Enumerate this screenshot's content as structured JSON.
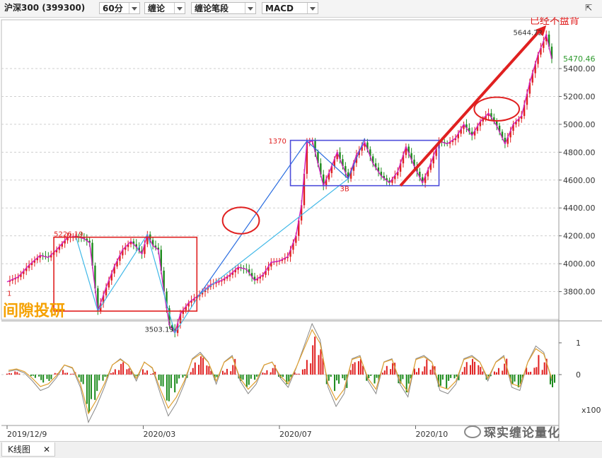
{
  "toolbar": {
    "title": "沪深300 (399300)",
    "period": "60分",
    "mode": "缠论",
    "sub_mode": "缠论笔段",
    "indicator": "MACD",
    "close_icon": "expand-icon"
  },
  "tab": {
    "label": "K线图",
    "close": "✕"
  },
  "watermark": "琛实缠论量化",
  "overlay_text": "间隙投研",
  "chart_data": {
    "type": "line",
    "price_axis": {
      "ylim": [
        3600,
        5750
      ],
      "ticks": [
        "5400.00",
        "5200.00",
        "5000.00",
        "4800.00",
        "4600.00",
        "4400.00",
        "4200.00",
        "4000.00",
        "3800.00"
      ]
    },
    "current_price": "5470.46",
    "x_ticks": [
      "2019/12/9",
      "2020/03",
      "2020/07",
      "2020/10"
    ],
    "price_series": [
      [
        0,
        3870
      ],
      [
        4,
        3905
      ],
      [
        8,
        3990
      ],
      [
        12,
        4060
      ],
      [
        15,
        4045
      ],
      [
        18,
        4100
      ],
      [
        22,
        4190
      ],
      [
        25,
        4195
      ],
      [
        28,
        4180
      ],
      [
        30,
        4150
      ],
      [
        33,
        3660
      ],
      [
        36,
        3830
      ],
      [
        39,
        3980
      ],
      [
        42,
        4100
      ],
      [
        45,
        4160
      ],
      [
        47,
        4120
      ],
      [
        49,
        4070
      ],
      [
        51,
        4210
      ],
      [
        53,
        4130
      ],
      [
        55,
        4100
      ],
      [
        57,
        3800
      ],
      [
        59,
        3560
      ],
      [
        61,
        3503
      ],
      [
        63,
        3640
      ],
      [
        66,
        3720
      ],
      [
        70,
        3780
      ],
      [
        74,
        3850
      ],
      [
        78,
        3880
      ],
      [
        81,
        3920
      ],
      [
        84,
        3975
      ],
      [
        87,
        3960
      ],
      [
        90,
        3880
      ],
      [
        93,
        3920
      ],
      [
        96,
        4010
      ],
      [
        99,
        4020
      ],
      [
        102,
        4050
      ],
      [
        105,
        4200
      ],
      [
        107,
        4420
      ],
      [
        109,
        4870
      ],
      [
        111,
        4880
      ],
      [
        113,
        4720
      ],
      [
        115,
        4560
      ],
      [
        117,
        4650
      ],
      [
        120,
        4800
      ],
      [
        122,
        4700
      ],
      [
        124,
        4610
      ],
      [
        127,
        4780
      ],
      [
        130,
        4870
      ],
      [
        133,
        4720
      ],
      [
        136,
        4630
      ],
      [
        139,
        4580
      ],
      [
        142,
        4660
      ],
      [
        145,
        4840
      ],
      [
        148,
        4700
      ],
      [
        151,
        4580
      ],
      [
        154,
        4720
      ],
      [
        157,
        4880
      ],
      [
        160,
        4860
      ],
      [
        163,
        4900
      ],
      [
        166,
        5000
      ],
      [
        169,
        4920
      ],
      [
        172,
        5020
      ],
      [
        175,
        5080
      ],
      [
        178,
        4990
      ],
      [
        181,
        4860
      ],
      [
        184,
        5000
      ],
      [
        187,
        5060
      ],
      [
        190,
        5300
      ],
      [
        193,
        5500
      ],
      [
        196,
        5644
      ],
      [
        198,
        5470
      ]
    ],
    "labels": [
      {
        "text": "已经不盘背",
        "x": 190,
        "y": 5720,
        "color": "#e02020"
      },
      {
        "text": "5644.72",
        "x": 184,
        "y": 5640,
        "color": "#333333"
      },
      {
        "text": "1370",
        "x": 95,
        "y": 4862,
        "color": "#e02020"
      },
      {
        "text": "3B",
        "x": 121,
        "y": 4520,
        "color": "#e02020"
      },
      {
        "text": "3503.19",
        "x": 50,
        "y": 3510,
        "color": "#333333"
      },
      {
        "text": "5226.19",
        "x": 17,
        "y": 4195,
        "color": "#e02020"
      },
      {
        "text": "1",
        "x": 0,
        "y": 3770,
        "color": "#e02020"
      }
    ],
    "bi_lines": [
      [
        [
          25,
          4195
        ],
        [
          33,
          3660
        ],
        [
          51,
          4210
        ],
        [
          61,
          3503
        ],
        [
          70,
          3780
        ]
      ],
      [
        [
          70,
          3780
        ],
        [
          109,
          4880
        ],
        [
          124,
          4610
        ],
        [
          130,
          4900
        ]
      ]
    ],
    "zhongshu": [
      {
        "x0": 17,
        "x1": 69,
        "y0": 3660,
        "y1": 4190,
        "color": "#e02020"
      },
      {
        "x0": 103,
        "x1": 157,
        "y0": 4560,
        "y1": 4885,
        "color": "#4d4ddb"
      }
    ],
    "highlights": [
      {
        "cx": 85,
        "cy": 4310,
        "rx": 6.5,
        "ry": 95,
        "color": "#e02020"
      },
      {
        "cx": 178,
        "cy": 5110,
        "rx": 8,
        "ry": 85,
        "color": "#e02020"
      }
    ],
    "big_arrow": {
      "from": [
        143,
        4560
      ],
      "to": [
        196,
        5710
      ],
      "color": "#e02020"
    },
    "macd": {
      "ylim": [
        -1.6,
        1.6
      ],
      "ticks": [
        "1",
        "0"
      ],
      "scale_label": "x100",
      "hist": [
        0.05,
        0.1,
        0,
        -0.15,
        -0.25,
        -0.2,
        0.05,
        0.2,
        0.1,
        -0.3,
        -1.2,
        -0.8,
        -0.3,
        0.2,
        0.4,
        0.2,
        -0.1,
        0.3,
        0.1,
        -0.4,
        -0.9,
        -0.6,
        -0.2,
        0.4,
        0.6,
        0.3,
        -0.2,
        0.3,
        0.5,
        -0.2,
        -0.4,
        -0.2,
        0.2,
        0.3,
        -0.1,
        -0.3,
        0.1,
        0.6,
        1.2,
        0.8,
        -0.3,
        -0.8,
        -0.5,
        0.4,
        0.5,
        -0.2,
        -0.5,
        0.3,
        0.4,
        -0.3,
        -0.6,
        0.4,
        0.5,
        0.3,
        -0.4,
        -0.5,
        -0.3,
        0.4,
        0.5,
        0.3,
        -0.2,
        0.3,
        0.5,
        -0.3,
        -0.4,
        0.3,
        0.8,
        0.5,
        -0.4
      ],
      "dif": [
        0.1,
        0.15,
        0.05,
        -0.2,
        -0.5,
        -0.4,
        -0.1,
        0.3,
        0.2,
        -0.4,
        -1.5,
        -1.0,
        -0.4,
        0.3,
        0.5,
        0.3,
        -0.2,
        0.4,
        0.2,
        -0.6,
        -1.3,
        -0.9,
        -0.3,
        0.5,
        0.7,
        0.4,
        -0.3,
        0.4,
        0.6,
        -0.2,
        -0.6,
        -0.3,
        0.3,
        0.4,
        -0.1,
        -0.4,
        0.2,
        0.9,
        1.6,
        1.1,
        -0.4,
        -1.0,
        -0.6,
        0.5,
        0.6,
        -0.2,
        -0.6,
        0.4,
        0.5,
        -0.3,
        -0.7,
        0.5,
        0.6,
        0.4,
        -0.5,
        -0.6,
        -0.3,
        0.5,
        0.6,
        0.4,
        -0.2,
        0.4,
        0.6,
        -0.4,
        -0.5,
        0.4,
        0.9,
        0.7,
        -0.2
      ]
    }
  },
  "colors": {
    "up": "#e02020",
    "down": "#1b8a1b",
    "bi": "#d020c0",
    "seg": "#2a6de0",
    "aux": "#40b8e8",
    "grid": "#cfcfcf"
  }
}
